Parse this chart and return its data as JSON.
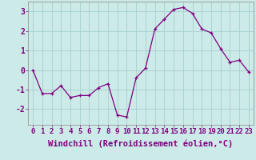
{
  "x": [
    0,
    1,
    2,
    3,
    4,
    5,
    6,
    7,
    8,
    9,
    10,
    11,
    12,
    13,
    14,
    15,
    16,
    17,
    18,
    19,
    20,
    21,
    22,
    23
  ],
  "y": [
    0.0,
    -1.2,
    -1.2,
    -0.8,
    -1.4,
    -1.3,
    -1.3,
    -0.9,
    -0.7,
    -2.3,
    -2.4,
    -0.4,
    0.1,
    2.1,
    2.6,
    3.1,
    3.2,
    2.9,
    2.1,
    1.9,
    1.1,
    0.4,
    0.5,
    -0.1
  ],
  "line_color": "#800080",
  "marker": "+",
  "bg_color": "#cceae7",
  "grid_color": "#aad4d0",
  "xlabel": "Windchill (Refroidissement éolien,°C)",
  "xlabel_fontsize": 7.5,
  "tick_fontsize": 6.5,
  "ylim": [
    -2.8,
    3.5
  ],
  "yticks": [
    -2,
    -1,
    0,
    1,
    2,
    3
  ]
}
